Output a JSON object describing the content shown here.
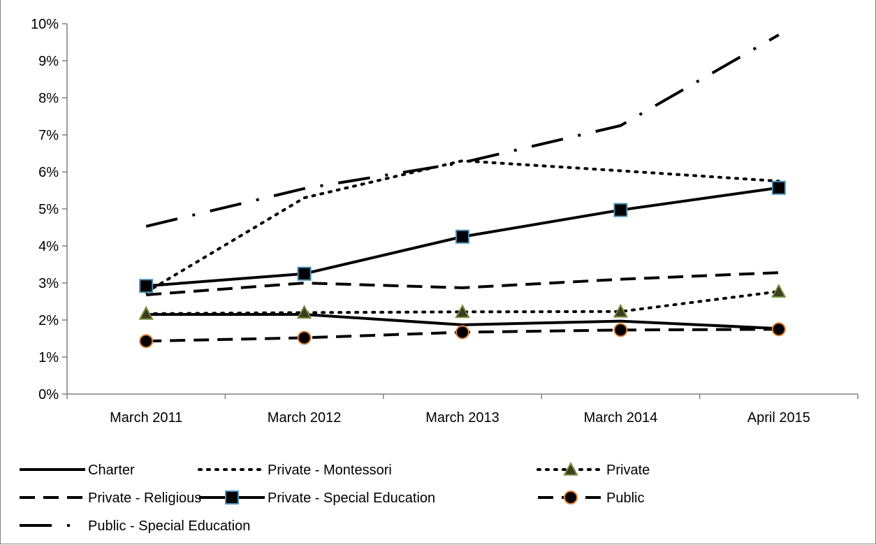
{
  "chart_data": {
    "type": "line",
    "title": "",
    "xlabel": "",
    "ylabel": "",
    "categories": [
      "March 2011",
      "March 2012",
      "March 2013",
      "March 2014",
      "April 2015"
    ],
    "ylim": [
      0,
      10
    ],
    "yticks": [
      "0%",
      "1%",
      "2%",
      "3%",
      "4%",
      "5%",
      "6%",
      "7%",
      "8%",
      "9%",
      "10%"
    ],
    "grid": false,
    "legend_position": "bottom",
    "series": [
      {
        "name": "Charter",
        "values": [
          2.15,
          2.15,
          1.87,
          1.97,
          1.77
        ],
        "dash": "solid",
        "marker": "none",
        "color": "#000000"
      },
      {
        "name": "Private - Montessori",
        "values": [
          2.75,
          5.3,
          6.3,
          6.03,
          5.75
        ],
        "dash": "dot",
        "marker": "none",
        "color": "#000000"
      },
      {
        "name": "Private",
        "values": [
          2.17,
          2.2,
          2.22,
          2.23,
          2.77
        ],
        "dash": "dot",
        "marker": "triangle",
        "color": "#000000",
        "marker_color": "#3c3c1e",
        "marker_edge": "#6f8f3a"
      },
      {
        "name": "Private - Religious",
        "values": [
          2.68,
          3.0,
          2.87,
          3.1,
          3.28
        ],
        "dash": "dash",
        "marker": "none",
        "color": "#000000"
      },
      {
        "name": "Private - Special Education",
        "values": [
          2.92,
          3.25,
          4.25,
          4.97,
          5.57
        ],
        "dash": "solid",
        "marker": "square",
        "color": "#000000",
        "marker_color": "#000000",
        "marker_edge": "#4a8fb8"
      },
      {
        "name": "Public",
        "values": [
          1.43,
          1.52,
          1.67,
          1.73,
          1.75
        ],
        "dash": "dash",
        "marker": "circle",
        "color": "#000000",
        "marker_color": "#000000",
        "marker_edge": "#e0843c"
      },
      {
        "name": "Public - Special Education",
        "values": [
          4.53,
          5.55,
          6.25,
          7.25,
          9.7
        ],
        "dash": "longdashdot",
        "marker": "none",
        "color": "#000000"
      }
    ]
  }
}
